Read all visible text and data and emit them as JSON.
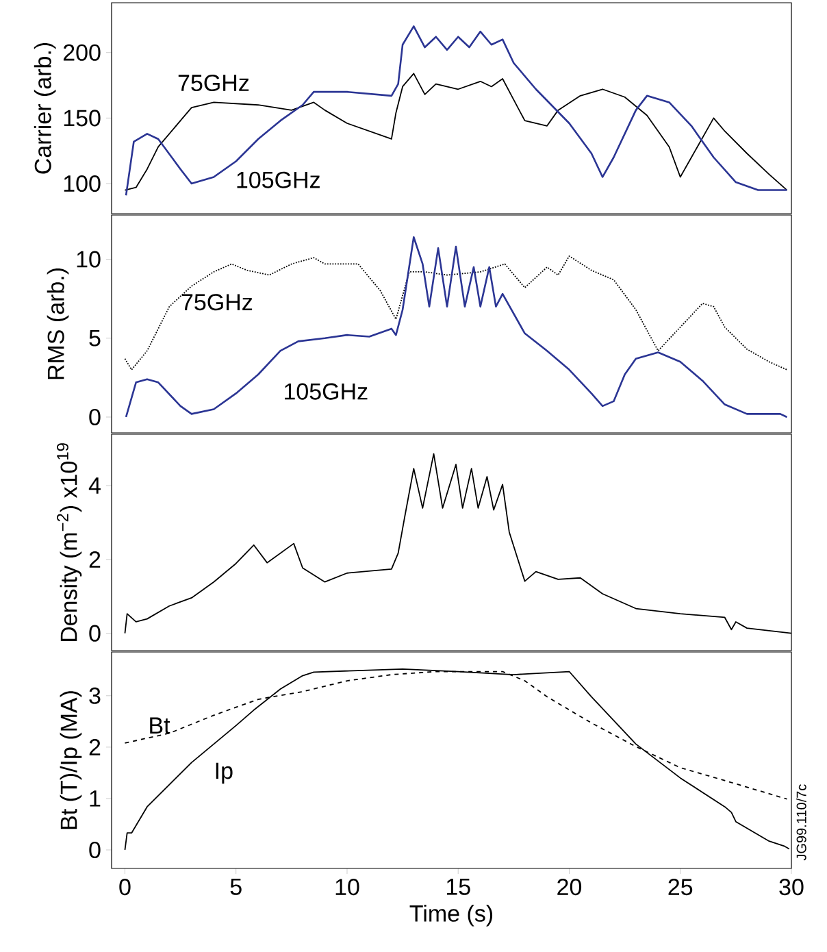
{
  "chart_data": [
    {
      "type": "line",
      "ylabel": "Carrier (arb.)",
      "xlim": [
        -0.6,
        30
      ],
      "ylim": [
        77,
        238
      ],
      "yticks": [
        100,
        150,
        200
      ],
      "tick_labels": "y",
      "series": [
        {
          "name": "75GHz",
          "color": "#000000",
          "line_style": "solid",
          "x": [
            0,
            0.5,
            1,
            1.5,
            2.5,
            3,
            4,
            6,
            7.5,
            8.5,
            9,
            10,
            11,
            12,
            12.2,
            12.5,
            13,
            13.5,
            14,
            15,
            16,
            16.5,
            17,
            17.5,
            18,
            19,
            19.5,
            20.5,
            21.5,
            22.5,
            23.5,
            24.5,
            25,
            25.5,
            26.5,
            27,
            28,
            29,
            29.8
          ],
          "values": [
            95,
            97,
            111,
            128,
            148,
            158,
            162,
            160,
            156,
            162,
            156,
            146,
            140,
            134,
            154,
            174,
            184,
            168,
            176,
            172,
            178,
            174,
            180,
            164,
            148,
            144,
            156,
            167,
            172,
            166,
            152,
            128,
            105,
            120,
            150,
            140,
            123,
            107,
            95
          ]
        },
        {
          "name": "105GHz",
          "color": "#2b3594",
          "line_style": "solid",
          "x": [
            0.05,
            0.4,
            1,
            1.5,
            2.5,
            3,
            4,
            5,
            6,
            7,
            8,
            8.5,
            10,
            12,
            12.3,
            12.5,
            13,
            13.5,
            14,
            14.5,
            15,
            15.5,
            16,
            16.5,
            17,
            17.5,
            18.5,
            20,
            21,
            21.5,
            22,
            23,
            23.5,
            24.5,
            25.5,
            26.5,
            27.5,
            28.5,
            29.8
          ],
          "values": [
            91,
            132,
            138,
            134,
            111,
            100,
            105,
            117,
            134,
            148,
            160,
            170,
            170,
            167,
            176,
            206,
            220,
            204,
            212,
            202,
            212,
            204,
            216,
            206,
            210,
            192,
            172,
            146,
            123,
            105,
            120,
            156,
            167,
            162,
            144,
            120,
            101,
            95,
            95
          ]
        }
      ]
    },
    {
      "type": "line",
      "ylabel": "RMS (arb.)",
      "xlim": [
        -0.6,
        30
      ],
      "ylim": [
        -1,
        12.8
      ],
      "yticks": [
        0,
        5,
        10
      ],
      "tick_labels": "y",
      "series": [
        {
          "name": "75GHz",
          "color": "#000000",
          "line_style": "dotted",
          "x": [
            0,
            0.3,
            1,
            2,
            3,
            4,
            4.8,
            5.5,
            6.5,
            7.5,
            8.5,
            9,
            10.5,
            11.5,
            12.2,
            12.8,
            13.5,
            14.5,
            16,
            17.1,
            18,
            19,
            19.5,
            20,
            21,
            22,
            23,
            24,
            25,
            26,
            26.5,
            27,
            28,
            29,
            29.8
          ],
          "values": [
            3.7,
            3.0,
            4.2,
            7.0,
            8.3,
            9.2,
            9.7,
            9.3,
            9.0,
            9.7,
            10.1,
            9.7,
            9.7,
            8.0,
            6.2,
            9.2,
            9.2,
            9.0,
            9.2,
            9.7,
            8.2,
            9.5,
            9.0,
            10.2,
            9.3,
            8.7,
            6.8,
            4.2,
            5.7,
            7.2,
            7.0,
            5.7,
            4.3,
            3.5,
            3.0
          ]
        },
        {
          "name": "105GHz",
          "color": "#2b3594",
          "line_style": "solid",
          "x": [
            0.05,
            0.5,
            1,
            1.5,
            2.5,
            3,
            4,
            5,
            6,
            7,
            7.8,
            9,
            10,
            11,
            12,
            12.2,
            12.5,
            13,
            13.4,
            13.7,
            14.1,
            14.5,
            14.9,
            15.3,
            15.7,
            16,
            16.4,
            16.7,
            17,
            18,
            19,
            20,
            21,
            21.5,
            22,
            22.5,
            23,
            24,
            25,
            26,
            27,
            28,
            29.5,
            29.8
          ],
          "values": [
            0,
            2.2,
            2.4,
            2.2,
            0.7,
            0.2,
            0.5,
            1.5,
            2.7,
            4.2,
            4.8,
            5.0,
            5.2,
            5.1,
            5.6,
            5.2,
            6.8,
            11.4,
            9.7,
            7.0,
            10.7,
            7.0,
            10.8,
            7.0,
            9.5,
            7.0,
            9.5,
            7.0,
            7.8,
            5.3,
            4.2,
            3.0,
            1.5,
            0.7,
            1.0,
            2.7,
            3.7,
            4.1,
            3.5,
            2.3,
            0.8,
            0.2,
            0.2,
            0
          ]
        }
      ]
    },
    {
      "type": "line",
      "ylabel": "Density (m$^{−2}$) x10$^{19}$",
      "xlim": [
        -0.6,
        30
      ],
      "ylim": [
        -0.47,
        5.39
      ],
      "yticks": [
        0,
        2,
        4
      ],
      "tick_labels": "y",
      "series": [
        {
          "color": "#000000",
          "line_style": "solid",
          "x": [
            0,
            0.1,
            0.5,
            1,
            2,
            3,
            4,
            5,
            5.8,
            6.4,
            7,
            7.6,
            8,
            9,
            10,
            12,
            12.3,
            12.6,
            13,
            13.4,
            13.9,
            14.3,
            14.9,
            15.2,
            15.6,
            15.9,
            16.3,
            16.6,
            17,
            17.3,
            18,
            18.5,
            19.5,
            20.5,
            21.5,
            23,
            25,
            27,
            27.3,
            27.5,
            28,
            29,
            30
          ],
          "values": [
            0,
            0.53,
            0.31,
            0.39,
            0.74,
            0.96,
            1.39,
            1.89,
            2.39,
            1.91,
            2.17,
            2.43,
            1.77,
            1.39,
            1.63,
            1.74,
            2.17,
            3.17,
            4.46,
            3.39,
            4.86,
            3.39,
            4.57,
            3.39,
            4.46,
            3.39,
            4.24,
            3.34,
            4.03,
            2.74,
            1.41,
            1.67,
            1.46,
            1.5,
            1.07,
            0.67,
            0.53,
            0.43,
            0.1,
            0.31,
            0.14,
            0.07,
            0
          ]
        }
      ]
    },
    {
      "type": "line",
      "ylabel": "Bt (T)/Ip (MA)",
      "xlabel": "Time (s)",
      "xlim": [
        -0.6,
        30
      ],
      "xticks": [
        0,
        5,
        10,
        15,
        20,
        25,
        30
      ],
      "ylim": [
        -0.36,
        3.85
      ],
      "yticks": [
        0,
        1,
        2,
        3
      ],
      "series": [
        {
          "name": "Bt",
          "color": "#000000",
          "line_style": "dashed",
          "x": [
            0,
            2,
            4,
            6,
            8,
            10,
            12,
            14,
            17,
            18,
            19,
            21,
            23,
            25,
            27,
            29.8
          ],
          "values": [
            2.08,
            2.27,
            2.62,
            2.93,
            3.08,
            3.29,
            3.41,
            3.47,
            3.47,
            3.29,
            2.98,
            2.47,
            2.01,
            1.6,
            1.35,
            0.99
          ]
        },
        {
          "name": "Ip",
          "color": "#000000",
          "line_style": "solid",
          "x": [
            0,
            0.1,
            0.3,
            1,
            2,
            3,
            4,
            5,
            5.8,
            7,
            8,
            8.5,
            12.5,
            15,
            17.5,
            20,
            21,
            22,
            23,
            25,
            27,
            27.3,
            27.5,
            29,
            29.7,
            29.9
          ],
          "values": [
            0,
            0.33,
            0.33,
            0.84,
            1.27,
            1.7,
            2.06,
            2.42,
            2.72,
            3.13,
            3.39,
            3.46,
            3.52,
            3.47,
            3.41,
            3.47,
            2.98,
            2.52,
            2.06,
            1.4,
            0.84,
            0.73,
            0.55,
            0.17,
            0.07,
            0.02
          ]
        }
      ],
      "annotations": [
        "JG99.110/7c"
      ]
    }
  ]
}
